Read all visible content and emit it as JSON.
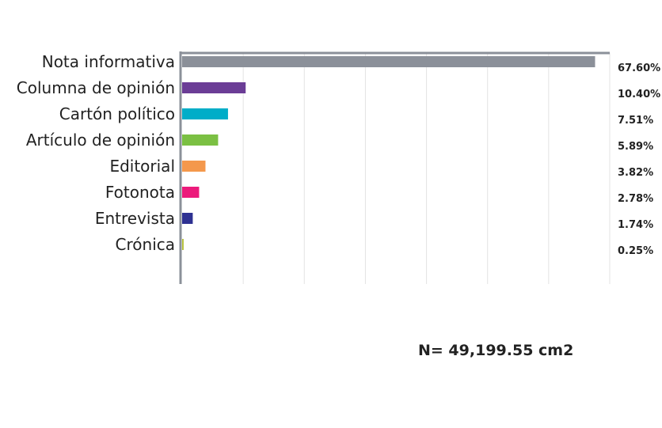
{
  "chart_data": {
    "type": "bar",
    "orientation": "horizontal",
    "categories": [
      "Nota informativa",
      "Columna de opinión",
      "Cartón político",
      "Artículo de opinión",
      "Editorial",
      "Fotonota",
      "Entrevista",
      "Crónica"
    ],
    "values": [
      67.6,
      10.4,
      7.51,
      5.89,
      3.82,
      2.78,
      1.74,
      0.25
    ],
    "value_labels": [
      "67.60%",
      "10.40%",
      "7.51%",
      "5.89%",
      "3.82%",
      "2.78%",
      "1.74%",
      "0.25%"
    ],
    "colors": [
      "#8b9099",
      "#6b3d96",
      "#00adc8",
      "#7bc043",
      "#f4984c",
      "#ec1a7b",
      "#2e3192",
      "#b6c03a"
    ],
    "xlim": [
      0,
      70
    ],
    "grid": true,
    "title": "",
    "xlabel": "",
    "ylabel": ""
  },
  "note": "N= 49,199.55 cm2"
}
